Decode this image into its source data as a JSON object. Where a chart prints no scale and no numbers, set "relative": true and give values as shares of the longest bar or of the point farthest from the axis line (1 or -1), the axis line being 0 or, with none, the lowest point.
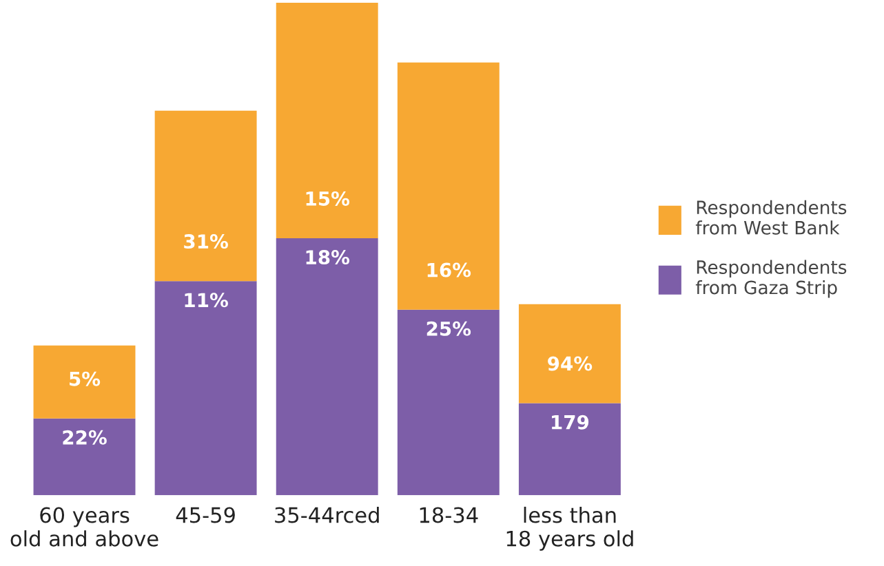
{
  "chart_data": {
    "type": "bar",
    "stacked": true,
    "relative": true,
    "legend": "right",
    "categories": [
      "60 years\nold and above",
      "45-59",
      "35-44rced",
      "18-34",
      "less than\n18 years old"
    ],
    "series": [
      {
        "name": "Respondendents\nfrom Gaza Strip",
        "color": "#7d5ea8",
        "values": [
          0.156,
          0.435,
          0.522,
          0.377,
          0.187
        ]
      },
      {
        "name": "Respondendents\nfrom West Bank",
        "color": "#f7a833",
        "values": [
          0.148,
          0.346,
          0.478,
          0.502,
          0.201
        ]
      }
    ],
    "annotations": [
      "22%",
      "5%",
      "11%",
      "31%",
      "18%",
      "15%",
      "25%",
      "16%",
      "179",
      "94%"
    ]
  }
}
